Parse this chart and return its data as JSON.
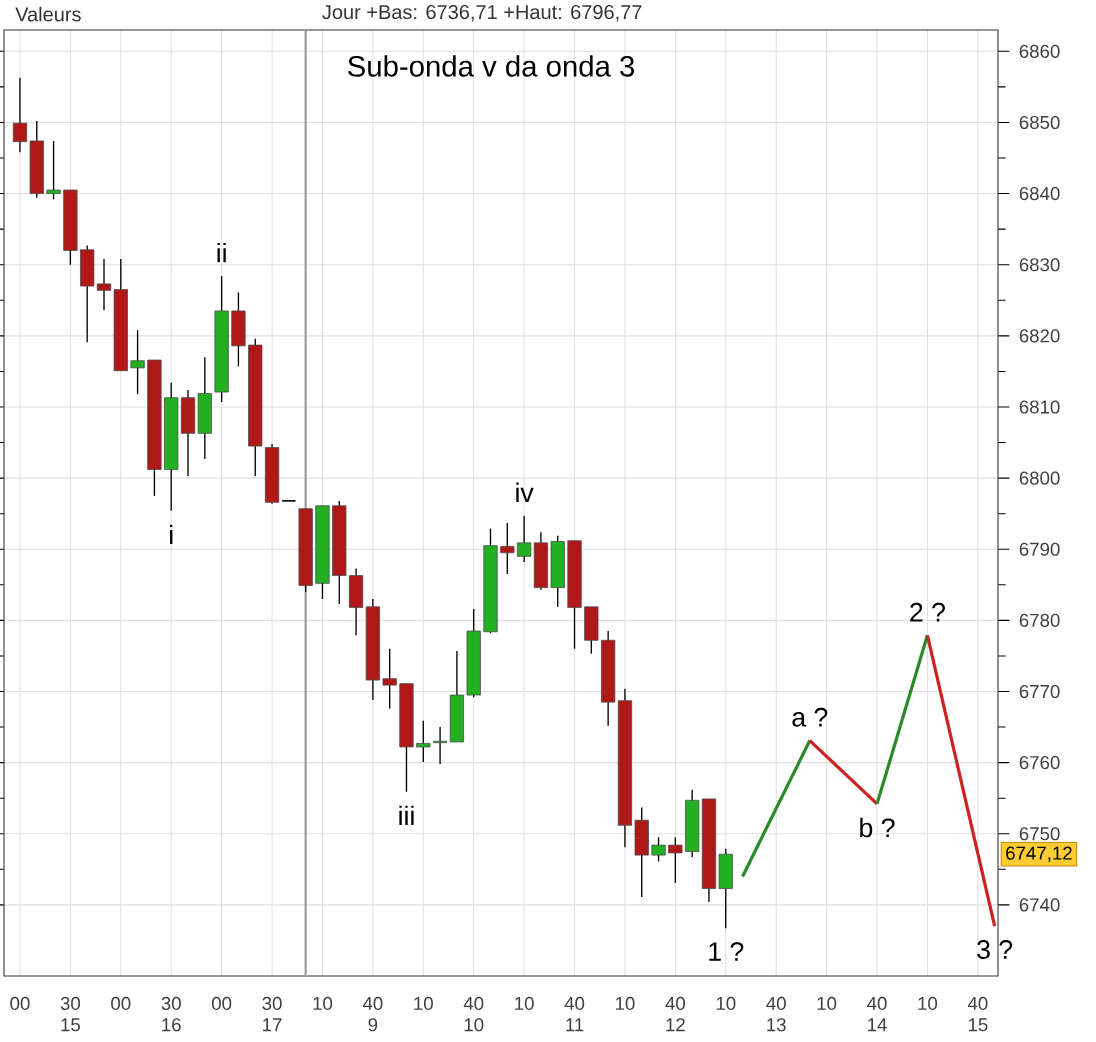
{
  "chart_data": {
    "type": "candlestick",
    "title": "Sub-onda v da onda 3",
    "categories": [
      "00",
      null,
      null,
      "30 15",
      null,
      null,
      "00",
      null,
      null,
      "30 16",
      null,
      null,
      "00",
      null,
      null,
      "30 17",
      null,
      null,
      "10",
      null,
      null,
      "40 9",
      null,
      null,
      "10",
      null,
      null,
      "40 10",
      null,
      null,
      "10",
      null,
      null,
      "40 11",
      null,
      null,
      "10",
      null,
      null,
      "40 12",
      null,
      null,
      "10",
      null,
      null,
      "40 13",
      null,
      null,
      "10",
      null,
      null,
      "40 14",
      null,
      null,
      "10",
      null,
      null,
      "40 15",
      null
    ],
    "ohlc": [
      [
        6849.9,
        6856.3,
        6845.8,
        6847.3
      ],
      [
        6847.4,
        6850.2,
        6839.4,
        6840.0
      ],
      [
        6840.0,
        6847.4,
        6839.2,
        6840.5
      ],
      [
        6840.5,
        6840.5,
        6830.0,
        6832.0
      ],
      [
        6832.1,
        6832.7,
        6819.1,
        6827.0
      ],
      [
        6827.3,
        6830.8,
        6823.6,
        6826.4
      ],
      [
        6826.5,
        6830.8,
        6815.1,
        6815.1
      ],
      [
        6815.5,
        6820.8,
        6811.8,
        6816.5
      ],
      [
        6816.6,
        6816.6,
        6797.5,
        6801.2
      ],
      [
        6801.2,
        6813.4,
        6795.4,
        6811.3
      ],
      [
        6811.3,
        6812.4,
        6800.3,
        6806.3
      ],
      [
        6806.3,
        6817.0,
        6802.7,
        6811.9
      ],
      [
        6812.1,
        6828.4,
        6810.7,
        6823.5
      ],
      [
        6823.5,
        6826.1,
        6815.7,
        6818.6
      ],
      [
        6818.7,
        6819.6,
        6800.3,
        6804.5
      ],
      [
        6804.3,
        6804.8,
        6796.4,
        6796.6
      ],
      [
        6796.8,
        6796.8,
        6796.8,
        6796.8
      ],
      [
        6795.7,
        6795.7,
        6784.0,
        6784.9
      ],
      [
        6785.2,
        6796.1,
        6783.0,
        6796.1
      ],
      [
        6796.1,
        6796.77,
        6782.3,
        6786.3
      ],
      [
        6786.3,
        6787.3,
        6777.9,
        6781.8
      ],
      [
        6781.9,
        6783.0,
        6768.8,
        6771.6
      ],
      [
        6771.8,
        6776.0,
        6767.6,
        6770.9
      ],
      [
        6771.1,
        6771.1,
        6755.9,
        6762.2
      ],
      [
        6762.2,
        6765.9,
        6760.1,
        6762.7
      ],
      [
        6762.8,
        6765.0,
        6759.8,
        6763.0
      ],
      [
        6762.9,
        6775.7,
        6762.9,
        6769.5
      ],
      [
        6769.5,
        6781.6,
        6769.2,
        6778.5
      ],
      [
        6778.4,
        6792.9,
        6778.2,
        6790.5
      ],
      [
        6790.4,
        6793.7,
        6786.5,
        6789.5
      ],
      [
        6789.0,
        6794.7,
        6788.2,
        6790.9
      ],
      [
        6790.9,
        6792.4,
        6784.3,
        6784.6
      ],
      [
        6784.6,
        6791.9,
        6781.9,
        6791.1
      ],
      [
        6791.2,
        6791.2,
        6776.0,
        6781.8
      ],
      [
        6781.9,
        6781.9,
        6775.3,
        6777.2
      ],
      [
        6777.2,
        6778.5,
        6765.2,
        6768.5
      ],
      [
        6768.7,
        6770.4,
        6748.1,
        6751.2
      ],
      [
        6751.9,
        6753.7,
        6741.1,
        6747.0
      ],
      [
        6747.0,
        6749.5,
        6746.1,
        6748.4
      ],
      [
        6748.4,
        6749.5,
        6743.1,
        6747.3
      ],
      [
        6747.5,
        6756.2,
        6746.7,
        6754.7
      ],
      [
        6754.9,
        6754.9,
        6740.4,
        6742.3
      ],
      [
        6742.3,
        6747.9,
        6736.71,
        6747.12
      ],
      null,
      null,
      null,
      null,
      null,
      null,
      null,
      null,
      null,
      null,
      null,
      null,
      null,
      null,
      null,
      null
    ],
    "colors": [
      "#b01818",
      "#b01818",
      "#22b022",
      "#b01818",
      "#b01818",
      "#b01818",
      "#b01818",
      "#22b022",
      "#b01818",
      "#22b022",
      "#b01818",
      "#22b022",
      "#22b022",
      "#b01818",
      "#b01818",
      "#b01818",
      "#000000",
      "#b01818",
      "#22b022",
      "#b01818",
      "#b01818",
      "#b01818",
      "#b01818",
      "#b01818",
      "#22b022",
      "#22b022",
      "#22b022",
      "#22b022",
      "#22b022",
      "#b01818",
      "#22b022",
      "#b01818",
      "#22b022",
      "#b01818",
      "#b01818",
      "#b01818",
      "#b01818",
      "#b01818",
      "#22b022",
      "#b01818",
      "#22b022",
      "#b01818",
      "#22b022",
      null,
      null,
      null,
      null,
      null,
      null,
      null,
      null,
      null,
      null,
      null,
      null,
      null,
      null,
      null,
      null
    ],
    "series": [
      {
        "type": "line",
        "color": "#2a8a2a",
        "values": [
          null,
          null,
          null,
          null,
          null,
          null,
          null,
          null,
          null,
          null,
          null,
          null,
          null,
          null,
          null,
          null,
          null,
          null,
          null,
          null,
          null,
          null,
          null,
          null,
          null,
          null,
          null,
          null,
          null,
          null,
          null,
          null,
          null,
          null,
          null,
          null,
          null,
          null,
          null,
          null,
          null,
          null,
          null,
          6744,
          null,
          null,
          null,
          6763.1,
          null,
          null,
          null,
          null,
          null,
          null,
          null,
          null,
          null,
          null,
          null
        ]
      },
      {
        "type": "line",
        "color": "#cc2222",
        "values": [
          null,
          null,
          null,
          null,
          null,
          null,
          null,
          null,
          null,
          null,
          null,
          null,
          null,
          null,
          null,
          null,
          null,
          null,
          null,
          null,
          null,
          null,
          null,
          null,
          null,
          null,
          null,
          null,
          null,
          null,
          null,
          null,
          null,
          null,
          null,
          null,
          null,
          null,
          null,
          null,
          null,
          null,
          null,
          null,
          null,
          null,
          null,
          6763.1,
          null,
          null,
          null,
          6754.2,
          null,
          null,
          null,
          null,
          null,
          null,
          null
        ]
      },
      {
        "type": "line",
        "color": "#2a8a2a",
        "values": [
          null,
          null,
          null,
          null,
          null,
          null,
          null,
          null,
          null,
          null,
          null,
          null,
          null,
          null,
          null,
          null,
          null,
          null,
          null,
          null,
          null,
          null,
          null,
          null,
          null,
          null,
          null,
          null,
          null,
          null,
          null,
          null,
          null,
          null,
          null,
          null,
          null,
          null,
          null,
          null,
          null,
          null,
          null,
          null,
          null,
          null,
          null,
          null,
          null,
          null,
          null,
          6754.2,
          null,
          null,
          6777.9,
          null,
          null,
          null,
          null
        ]
      },
      {
        "type": "line",
        "color": "#cc2222",
        "values": [
          null,
          null,
          null,
          null,
          null,
          null,
          null,
          null,
          null,
          null,
          null,
          null,
          null,
          null,
          null,
          null,
          null,
          null,
          null,
          null,
          null,
          null,
          null,
          null,
          null,
          null,
          null,
          null,
          null,
          null,
          null,
          null,
          null,
          null,
          null,
          null,
          null,
          null,
          null,
          null,
          null,
          null,
          null,
          null,
          null,
          null,
          null,
          null,
          null,
          null,
          null,
          null,
          null,
          null,
          6777.9,
          null,
          null,
          null,
          6737
        ]
      }
    ],
    "ylim": [
      6730,
      6863
    ],
    "yticks": [
      6740,
      6750,
      6760,
      6770,
      6780,
      6790,
      6800,
      6810,
      6820,
      6830,
      6840,
      6850,
      6860
    ],
    "grid": true,
    "annotations": [
      "Valeurs",
      "Jour +Bas: 6736,71 +Haut: 6796,77",
      {
        "text": "6747,12",
        "y": 6747.12
      },
      {
        "text": "i",
        "y": 6795.4
      },
      {
        "text": "ii",
        "y": 6828.4
      },
      {
        "text": "iii",
        "y": 6755.9
      },
      {
        "text": "iv",
        "y": 6794.7
      },
      {
        "text": "1 ?",
        "y": 6736.71
      },
      {
        "text": "a ?",
        "y": 6763.1
      },
      {
        "text": "b ?",
        "y": 6754.2
      },
      {
        "text": "2 ?",
        "y": 6777.9
      },
      {
        "text": "3 ?",
        "y": 6737
      }
    ]
  }
}
